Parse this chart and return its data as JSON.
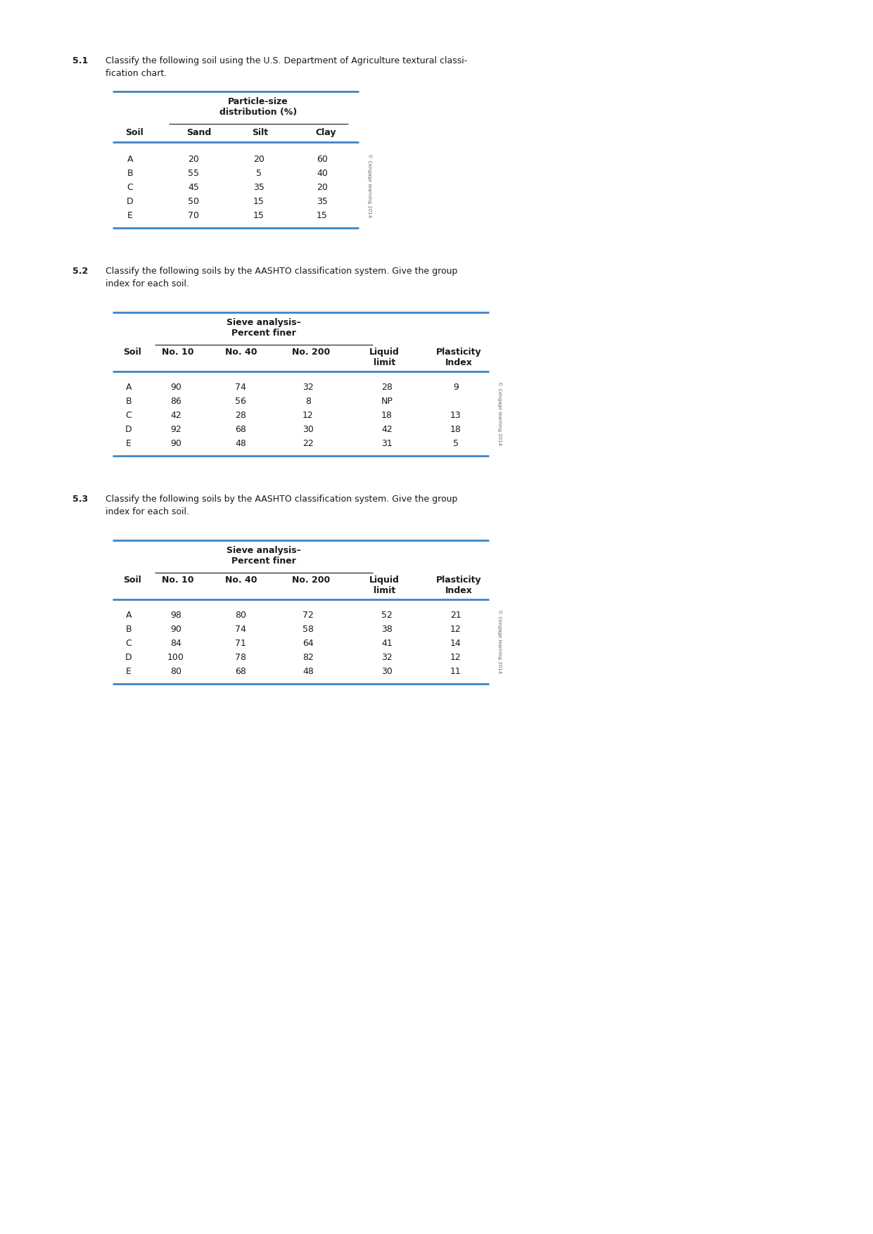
{
  "bg": "#ffffff",
  "blue": "#3d85c8",
  "black": "#1a1a1a",
  "gray": "#666666",
  "p51_num": "5.1",
  "p51_t1": "Classify the following soil using the U.S. Department of Agriculture textural classi-",
  "p51_t2": "fication chart.",
  "p51_span": "Particle-size\ndistribution (%)",
  "p51_cols": [
    "Soil",
    "Sand",
    "Silt",
    "Clay"
  ],
  "p51_rows": [
    [
      "A",
      "20",
      "20",
      "60"
    ],
    [
      "B",
      "55",
      "5",
      "40"
    ],
    [
      "C",
      "45",
      "35",
      "20"
    ],
    [
      "D",
      "50",
      "15",
      "35"
    ],
    [
      "E",
      "70",
      "15",
      "15"
    ]
  ],
  "p51_copy": "© Cengage learning 2014",
  "p52_num": "5.2",
  "p52_t1": "Classify the following soils by the AASHTO classification system. Give the group",
  "p52_t2": "index for each soil.",
  "p52_span": "Sieve analysis–\nPercent finer",
  "p52_cols": [
    "Soil",
    "No. 10",
    "No. 40",
    "No. 200",
    "Liquid\nlimit",
    "Plasticity\nIndex"
  ],
  "p52_rows": [
    [
      "A",
      "90",
      "74",
      "32",
      "28",
      "9"
    ],
    [
      "B",
      "86",
      "56",
      "8",
      "NP",
      ""
    ],
    [
      "C",
      "42",
      "28",
      "12",
      "18",
      "13"
    ],
    [
      "D",
      "92",
      "68",
      "30",
      "42",
      "18"
    ],
    [
      "E",
      "90",
      "48",
      "22",
      "31",
      "5"
    ]
  ],
  "p52_copy": "© Cengage learning 2014",
  "p53_num": "5.3",
  "p53_t1": "Classify the following soils by the AASHTO classification system. Give the group",
  "p53_t2": "index for each soil.",
  "p53_span": "Sieve analysis–\nPercent finer",
  "p53_cols": [
    "Soil",
    "No. 10",
    "No. 40",
    "No. 200",
    "Liquid\nlimit",
    "Plasticity\nIndex"
  ],
  "p53_rows": [
    [
      "A",
      "98",
      "80",
      "72",
      "52",
      "21"
    ],
    [
      "B",
      "90",
      "74",
      "58",
      "38",
      "12"
    ],
    [
      "C",
      "84",
      "71",
      "64",
      "41",
      "14"
    ],
    [
      "D",
      "100",
      "78",
      "82",
      "32",
      "12"
    ],
    [
      "E",
      "80",
      "68",
      "48",
      "30",
      "11"
    ]
  ],
  "p53_copy": "© Cengage learning 2014",
  "fs_body": 9.0,
  "fs_bold": 9.0,
  "fs_num": 9.0,
  "fs_copy": 5.0
}
